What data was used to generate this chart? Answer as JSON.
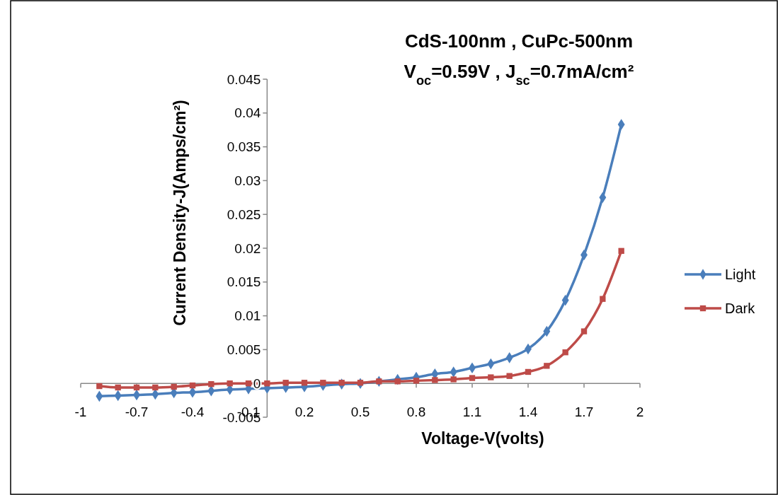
{
  "chart_data": {
    "type": "line",
    "title": "CdS-100nm , CuPc-500nm",
    "subtitle": "V$_{oc}$=0.59V , J$_{sc}$=0.7mA/cm²",
    "xlabel": "Voltage-V(volts)",
    "ylabel": "Current Density-J(Amps/cm²)",
    "x": [
      -0.9,
      -0.8,
      -0.7,
      -0.6,
      -0.5,
      -0.4,
      -0.3,
      -0.2,
      -0.1,
      0,
      0.1,
      0.2,
      0.3,
      0.4,
      0.5,
      0.6,
      0.7,
      0.8,
      0.9,
      1.0,
      1.1,
      1.2,
      1.3,
      1.4,
      1.5,
      1.6,
      1.7,
      1.8,
      1.9
    ],
    "series": [
      {
        "name": "Light",
        "color": "#4a7ebb",
        "marker": "diamond",
        "values": [
          -0.0019,
          -0.0018,
          -0.0017,
          -0.0016,
          -0.0014,
          -0.0013,
          -0.0011,
          -0.0009,
          -0.0008,
          -0.0007,
          -0.0006,
          -0.0005,
          -0.0003,
          -0.0001,
          0,
          0.0003,
          0.0006,
          0.0009,
          0.0014,
          0.0017,
          0.0023,
          0.0029,
          0.0038,
          0.0051,
          0.0077,
          0.0123,
          0.019,
          0.0275,
          0.0383
        ]
      },
      {
        "name": "Dark",
        "color": "#be4b48",
        "marker": "square",
        "values": [
          -0.0004,
          -0.0006,
          -0.0006,
          -0.0006,
          -0.0005,
          -0.0003,
          -0.0001,
          0,
          0,
          0,
          0.0001,
          0.0001,
          0.0001,
          0.0001,
          0.0001,
          0.0003,
          0.0003,
          0.0004,
          0.0005,
          0.0006,
          0.0008,
          0.0009,
          0.0011,
          0.0017,
          0.0026,
          0.0046,
          0.0077,
          0.0125,
          0.0196
        ]
      }
    ],
    "xlim": [
      -1,
      2
    ],
    "xticks": [
      -1,
      -0.7,
      -0.4,
      -0.1,
      0.2,
      0.5,
      0.8,
      1.1,
      1.4,
      1.7,
      2
    ],
    "ylim": [
      -0.005,
      0.045
    ],
    "yticks": [
      -0.005,
      0,
      0.005,
      0.01,
      0.015,
      0.02,
      0.025,
      0.03,
      0.035,
      0.04,
      0.045
    ],
    "grid": false,
    "legend": "right",
    "line_style": "solid"
  }
}
